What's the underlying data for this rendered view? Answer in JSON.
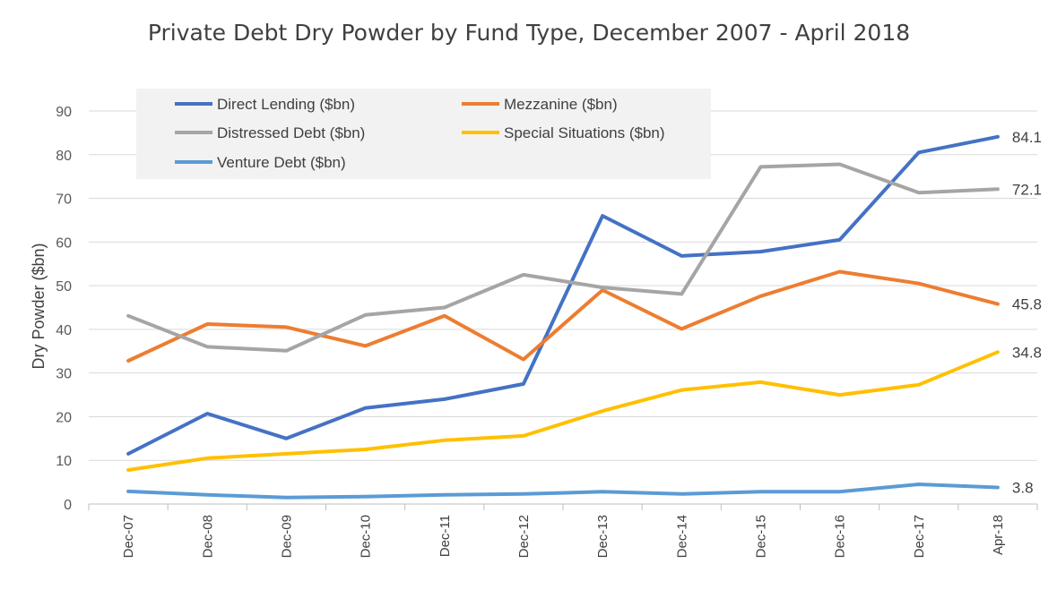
{
  "chart_data": {
    "type": "line",
    "title": "Private Debt Dry Powder by Fund Type, December 2007 - April 2018",
    "ylabel": "Dry Powder ($bn)",
    "xlabel": "",
    "ylim": [
      0,
      90
    ],
    "yticks": [
      0,
      10,
      20,
      30,
      40,
      50,
      60,
      70,
      80,
      90
    ],
    "grid": true,
    "legend_position": "top-left",
    "categories": [
      "Dec-07",
      "Dec-08",
      "Dec-09",
      "Dec-10",
      "Dec-11",
      "Dec-12",
      "Dec-13",
      "Dec-14",
      "Dec-15",
      "Dec-16",
      "Dec-17",
      "Apr-18"
    ],
    "series": [
      {
        "name": "Direct Lending ($bn)",
        "color": "#4472c4",
        "values": [
          11.5,
          20.7,
          15.0,
          22.0,
          24.0,
          27.5,
          66.0,
          56.8,
          57.8,
          60.5,
          80.5,
          84.1
        ],
        "end_label": "84.1"
      },
      {
        "name": "Mezzanine ($bn)",
        "color": "#ed7d31",
        "values": [
          32.8,
          41.2,
          40.5,
          36.2,
          43.1,
          33.1,
          49.0,
          40.1,
          47.6,
          53.2,
          50.5,
          45.8
        ],
        "end_label": "45.8"
      },
      {
        "name": "Distressed Debt ($bn)",
        "color": "#a5a5a5",
        "values": [
          43.1,
          36.0,
          35.1,
          43.3,
          45.0,
          52.5,
          49.6,
          48.1,
          77.2,
          77.8,
          71.3,
          72.1
        ],
        "end_label": "72.1"
      },
      {
        "name": "Special Situations ($bn)",
        "color": "#ffc000",
        "values": [
          7.8,
          10.5,
          11.5,
          12.5,
          14.6,
          15.6,
          21.3,
          26.1,
          27.9,
          25.0,
          27.3,
          34.8
        ],
        "end_label": "34.8"
      },
      {
        "name": "Venture Debt ($bn)",
        "color": "#5b9bd5",
        "values": [
          2.9,
          2.1,
          1.5,
          1.7,
          2.1,
          2.3,
          2.8,
          2.3,
          2.8,
          2.8,
          4.5,
          3.8
        ],
        "end_label": "3.8"
      }
    ]
  }
}
